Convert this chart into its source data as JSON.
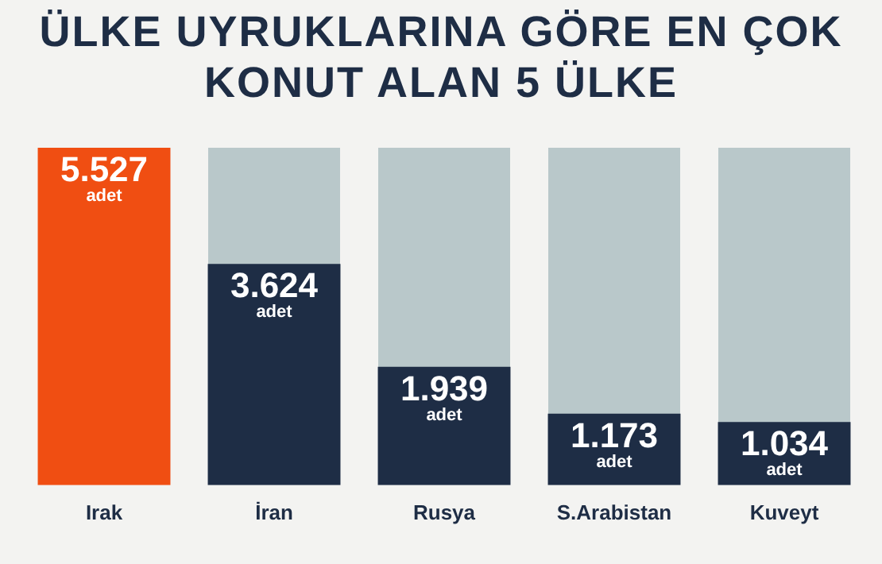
{
  "chart_data": {
    "type": "bar",
    "title": "ÜLKE UYRUKLARINA GÖRE EN ÇOK KONUT ALAN 5 ÜLKE",
    "categories": [
      "Irak",
      "İran",
      "Rusya",
      "S.Arabistan",
      "Kuveyt"
    ],
    "values": [
      5527,
      3624,
      1939,
      1173,
      1034
    ],
    "colors": [
      "#f04e12",
      "#1e2d45",
      "#1e2d45",
      "#1e2d45",
      "#1e2d45"
    ],
    "value_labels": [
      "5.527 adet",
      "3.624 adet",
      "1.939 adet",
      "1.173 adet",
      "1.034 adet"
    ],
    "grid": false,
    "legend": false
  }
}
